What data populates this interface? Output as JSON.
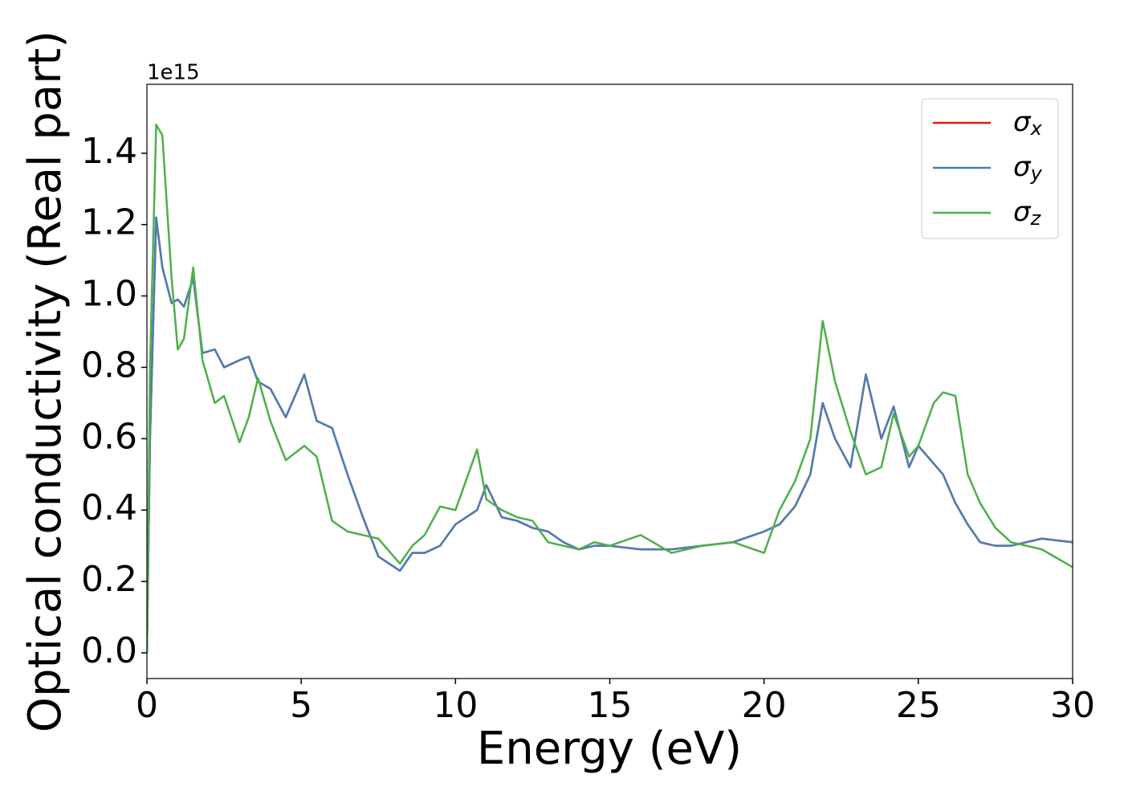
{
  "chart_data": {
    "type": "line",
    "x_label": "Energy (eV)",
    "y_label": "Optical conductivity (Real part)",
    "y_offset_label": "1e15",
    "x": [
      0,
      0.1,
      0.3,
      0.5,
      0.8,
      1.0,
      1.2,
      1.5,
      1.8,
      2.2,
      2.5,
      3.0,
      3.3,
      3.6,
      4.0,
      4.5,
      5.1,
      5.5,
      6.0,
      6.5,
      7.0,
      7.5,
      8.2,
      8.6,
      9.0,
      9.5,
      10.0,
      10.7,
      11.0,
      11.5,
      12.0,
      12.5,
      13.0,
      13.5,
      14.0,
      14.5,
      15.0,
      16.0,
      17.0,
      18.0,
      19.0,
      20.0,
      20.5,
      21.0,
      21.5,
      21.9,
      22.3,
      22.8,
      23.3,
      23.8,
      24.2,
      24.7,
      25.0,
      25.5,
      25.8,
      26.2,
      26.6,
      27.0,
      27.5,
      28.0,
      29.0,
      30.0
    ],
    "series": [
      {
        "name": "σx",
        "color": "#e41a1c",
        "values": [
          0.0,
          0.6,
          1.22,
          1.08,
          0.98,
          0.99,
          0.97,
          1.05,
          0.84,
          0.85,
          0.8,
          0.82,
          0.83,
          0.76,
          0.74,
          0.66,
          0.78,
          0.65,
          0.63,
          0.5,
          0.38,
          0.27,
          0.23,
          0.28,
          0.28,
          0.3,
          0.36,
          0.4,
          0.47,
          0.38,
          0.37,
          0.35,
          0.34,
          0.31,
          0.29,
          0.3,
          0.3,
          0.29,
          0.29,
          0.3,
          0.31,
          0.34,
          0.36,
          0.41,
          0.5,
          0.7,
          0.6,
          0.52,
          0.78,
          0.6,
          0.69,
          0.52,
          0.58,
          0.53,
          0.5,
          0.42,
          0.36,
          0.31,
          0.3,
          0.3,
          0.32,
          0.31
        ]
      },
      {
        "name": "σy",
        "color": "#4a7eb4",
        "values": [
          0.0,
          0.6,
          1.22,
          1.08,
          0.98,
          0.99,
          0.97,
          1.05,
          0.84,
          0.85,
          0.8,
          0.82,
          0.83,
          0.76,
          0.74,
          0.66,
          0.78,
          0.65,
          0.63,
          0.5,
          0.38,
          0.27,
          0.23,
          0.28,
          0.28,
          0.3,
          0.36,
          0.4,
          0.47,
          0.38,
          0.37,
          0.35,
          0.34,
          0.31,
          0.29,
          0.3,
          0.3,
          0.29,
          0.29,
          0.3,
          0.31,
          0.34,
          0.36,
          0.41,
          0.5,
          0.7,
          0.6,
          0.52,
          0.78,
          0.6,
          0.69,
          0.52,
          0.58,
          0.53,
          0.5,
          0.42,
          0.36,
          0.31,
          0.3,
          0.3,
          0.32,
          0.31
        ]
      },
      {
        "name": "σz",
        "color": "#4daf4a",
        "values": [
          0.0,
          0.8,
          1.48,
          1.45,
          1.05,
          0.85,
          0.88,
          1.08,
          0.82,
          0.7,
          0.72,
          0.59,
          0.66,
          0.77,
          0.65,
          0.54,
          0.58,
          0.55,
          0.37,
          0.34,
          0.33,
          0.32,
          0.25,
          0.3,
          0.33,
          0.41,
          0.4,
          0.57,
          0.43,
          0.4,
          0.38,
          0.37,
          0.31,
          0.3,
          0.29,
          0.31,
          0.3,
          0.33,
          0.28,
          0.3,
          0.31,
          0.28,
          0.4,
          0.48,
          0.6,
          0.93,
          0.76,
          0.62,
          0.5,
          0.52,
          0.67,
          0.55,
          0.58,
          0.7,
          0.73,
          0.72,
          0.5,
          0.42,
          0.35,
          0.31,
          0.29,
          0.24
        ]
      }
    ],
    "xlim": [
      0,
      30
    ],
    "xticks": [
      0,
      5,
      10,
      15,
      20,
      25,
      30
    ],
    "ylim": [
      -0.072,
      1.593
    ],
    "yticks": [
      {
        "value": 0,
        "label": "0.0"
      },
      0.2,
      0.4,
      0.6,
      0.8,
      {
        "value": 1,
        "label": "1.0"
      },
      1.2,
      1.4
    ],
    "legend": "upper right",
    "grid": false
  }
}
